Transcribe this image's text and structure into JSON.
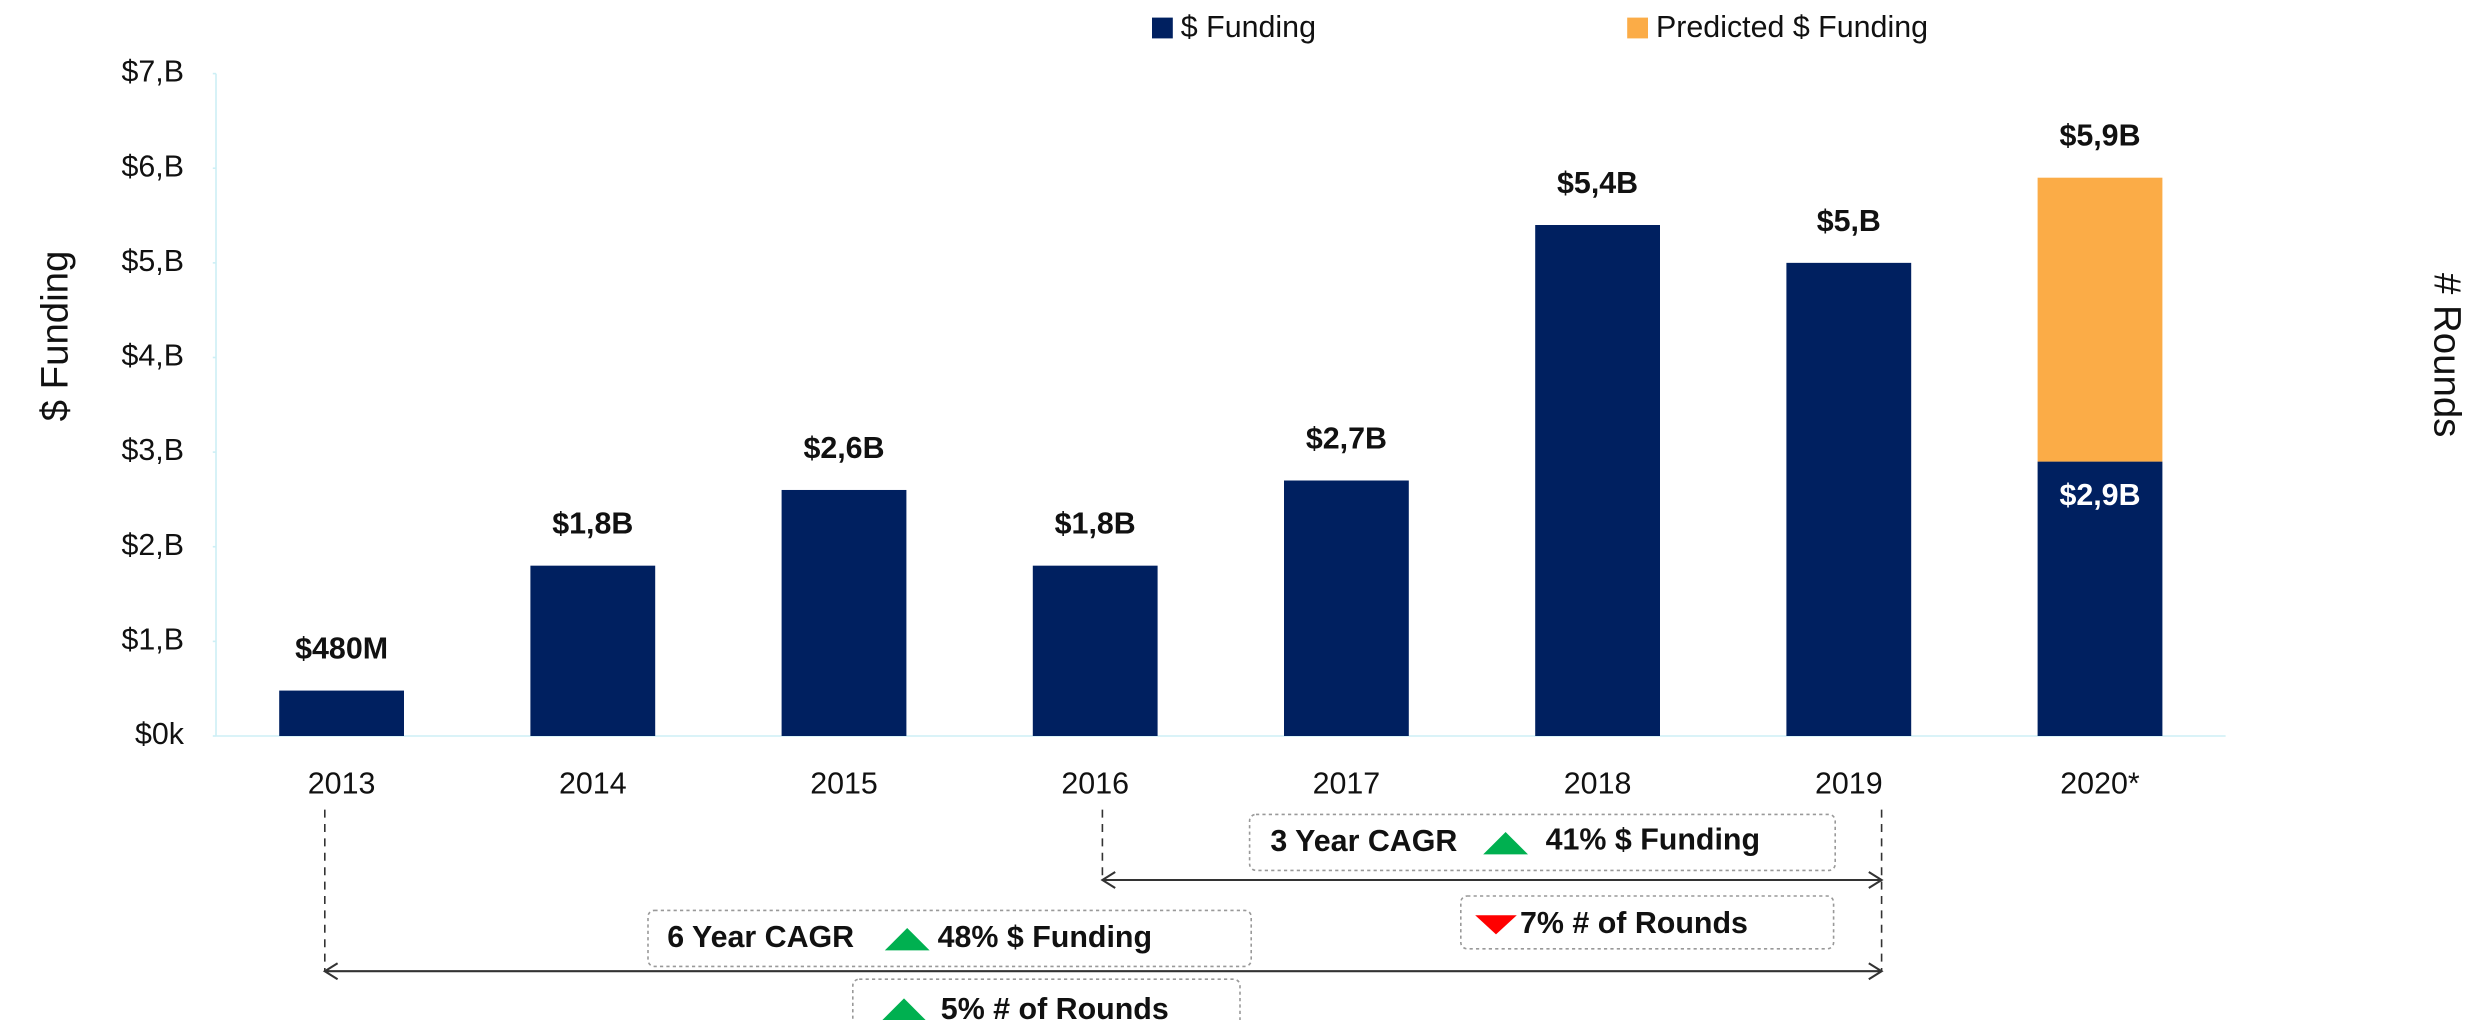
{
  "chart_data": {
    "type": "stacked_bar",
    "y_axis_label": "$ Funding",
    "y2_axis_label": "# Rounds",
    "categories": [
      "2013",
      "2014",
      "2015",
      "2016",
      "2017",
      "2018",
      "2019",
      "2020*"
    ],
    "series": [
      {
        "name": "$ Funding",
        "color": "#002060",
        "values": [
          0.48,
          1.8,
          2.6,
          1.8,
          2.7,
          5.4,
          5.0,
          2.9
        ],
        "value_labels": [
          "$480M",
          "$1,8B",
          "$2,6B",
          "$1,8B",
          "$2,7B",
          "$5,4B",
          "$5,B",
          "$2,9B"
        ]
      },
      {
        "name": "Predicted $ Funding",
        "color": "#fbac47",
        "values": [
          null,
          null,
          null,
          null,
          null,
          null,
          null,
          3.0
        ]
      }
    ],
    "stack_total_label": "$5,9B",
    "ylim": [
      0,
      7
    ],
    "yticks": [
      {
        "value": 0,
        "label": "$0k"
      },
      {
        "value": 1,
        "label": "$1,B"
      },
      {
        "value": 2,
        "label": "$2,B"
      },
      {
        "value": 3,
        "label": "$3,B"
      },
      {
        "value": 4,
        "label": "$4,B"
      },
      {
        "value": 5,
        "label": "$5,B"
      },
      {
        "value": 6,
        "label": "$6,B"
      },
      {
        "value": 7,
        "label": "$7,B"
      }
    ],
    "legend": "top",
    "annotations": {
      "cagr3_title": "3 Year CAGR",
      "cagr3_funding": "41% $ Funding",
      "cagr3_rounds": "7% # of Rounds",
      "cagr6_title": "6 Year CAGR",
      "cagr6_funding": "48% $ Funding",
      "cagr6_rounds": "5% # of Rounds"
    }
  }
}
